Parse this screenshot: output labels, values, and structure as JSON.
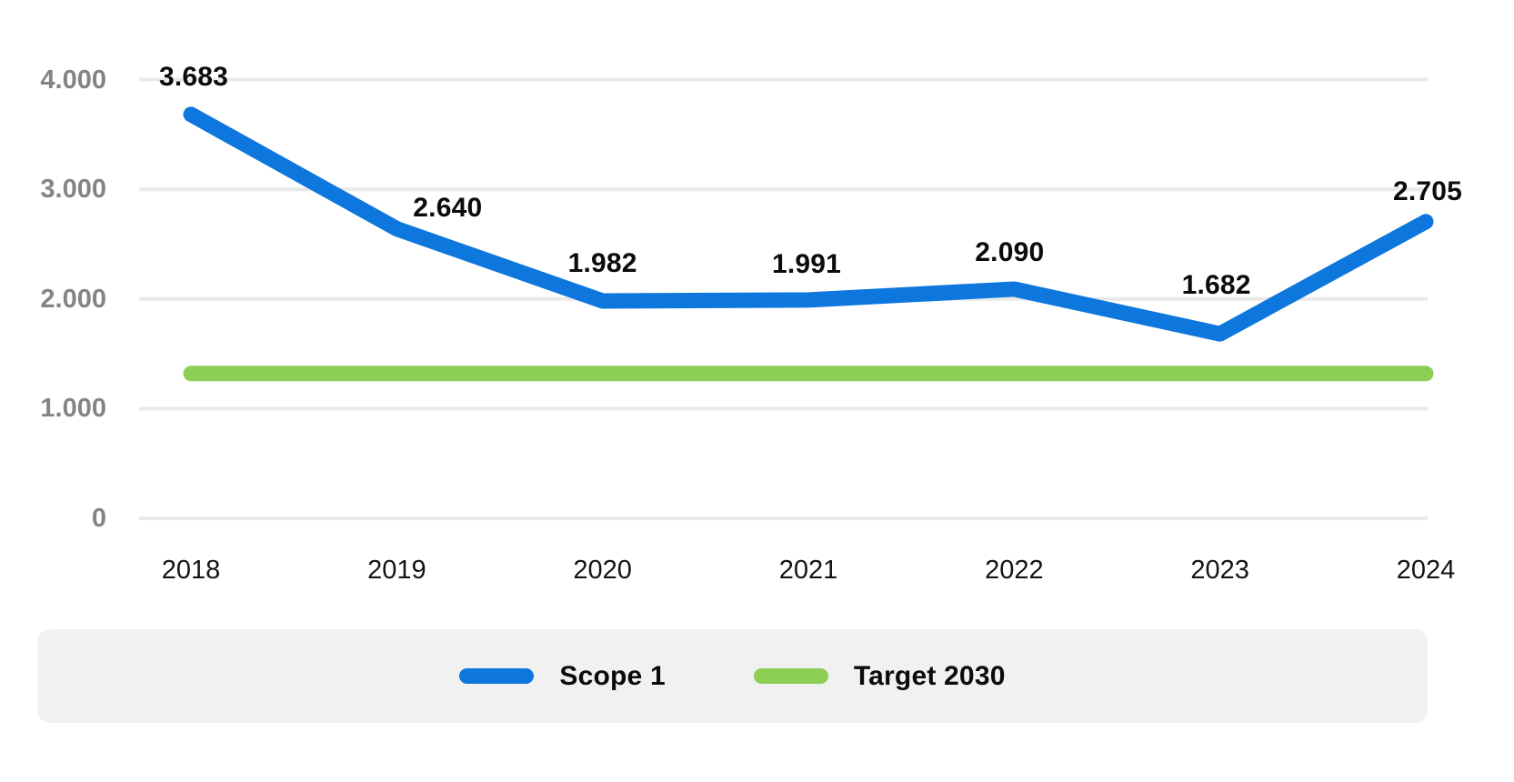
{
  "chart_data": {
    "type": "line",
    "title": "",
    "categories": [
      "2018",
      "2019",
      "2020",
      "2021",
      "2022",
      "2023",
      "2024"
    ],
    "series": [
      {
        "name": "Scope 1",
        "values": [
          3683,
          2640,
          1982,
          1991,
          2090,
          1682,
          2705
        ],
        "value_labels": [
          "3.683",
          "2.640",
          "1.982",
          "1.991",
          "2.090",
          "1.682",
          "2.705"
        ],
        "color": "#0d77dd",
        "style": "line"
      },
      {
        "name": "Target 2030",
        "value": 1320,
        "color": "#8dce55",
        "style": "horizontal-line"
      }
    ],
    "y_axis": {
      "ticks": [
        {
          "label": "4.000",
          "value": 4000
        },
        {
          "label": "3.000",
          "value": 3000
        },
        {
          "label": "2.000",
          "value": 2000
        },
        {
          "label": "1.000",
          "value": 1000
        },
        {
          "label": "0",
          "value": 0
        }
      ],
      "range": [
        0,
        4000
      ]
    },
    "xlabel": "",
    "ylabel": "",
    "grid": true,
    "legend_position": "bottom"
  },
  "colors": {
    "grid_line": "#e9e9e9",
    "y_tick_label": "#848484",
    "x_tick_label": "#141414",
    "data_label": "#0b0b0b",
    "legend_background": "#f1f1f1"
  }
}
